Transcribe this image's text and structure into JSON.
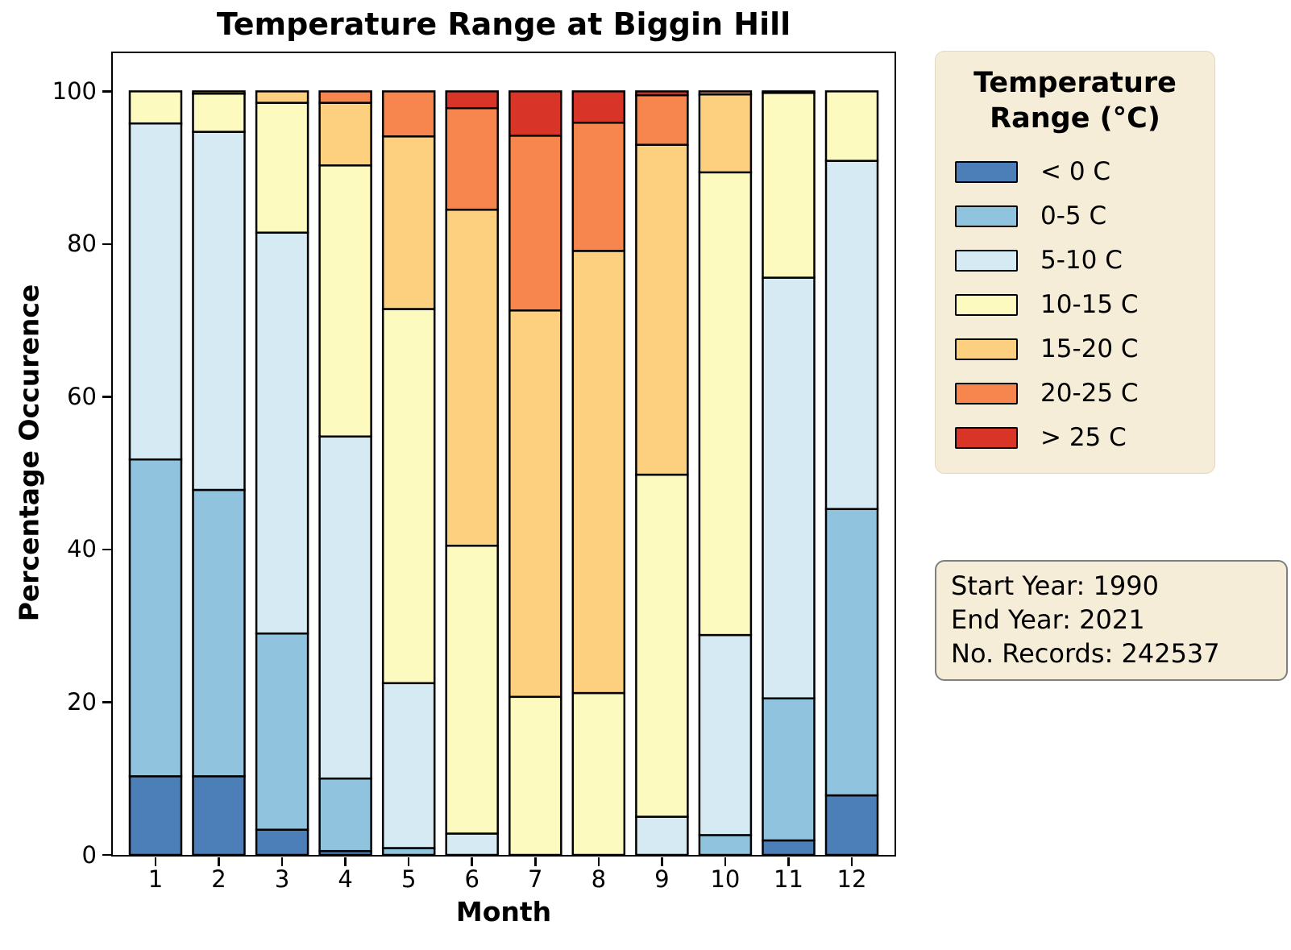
{
  "figure": {
    "title": "Temperature Range at Biggin Hill"
  },
  "axes": {
    "xlabel": "Month",
    "ylabel": "Percentage Occurence",
    "xtick_labels": [
      "1",
      "2",
      "3",
      "4",
      "5",
      "6",
      "7",
      "8",
      "9",
      "10",
      "11",
      "12"
    ],
    "ytick_labels": [
      "0",
      "20",
      "40",
      "60",
      "80",
      "100"
    ]
  },
  "legend": {
    "title": "Temperature Range (°C)",
    "background_color": "#f6edd8"
  },
  "info_box": {
    "lines": [
      "Start Year: 1990",
      "End Year: 2021",
      "No. Records: 242537"
    ],
    "background_color": "#f6edd8",
    "border_color": "#7f7f7f"
  },
  "chart_data": {
    "type": "bar",
    "stacked": true,
    "title": "Temperature Range at Biggin Hill",
    "xlabel": "Month",
    "ylabel": "Percentage Occurence",
    "categories": [
      1,
      2,
      3,
      4,
      5,
      6,
      7,
      8,
      9,
      10,
      11,
      12
    ],
    "yticks": [
      0,
      20,
      40,
      60,
      80,
      100
    ],
    "ylim": [
      0,
      105
    ],
    "grid": false,
    "legend_position": "right",
    "legend_title": "Temperature Range (°C)",
    "bar_edge_color": "#000000",
    "series": [
      {
        "name": "< 0 C",
        "color": "#4c7fb8",
        "values": [
          10.3,
          10.3,
          3.3,
          0.5,
          0,
          0,
          0,
          0,
          0,
          0,
          1.9,
          7.8
        ]
      },
      {
        "name": "0-5 C",
        "color": "#90c3de",
        "values": [
          41.5,
          37.5,
          25.7,
          9.5,
          0.9,
          0,
          0,
          0,
          0,
          2.6,
          18.6,
          37.5
        ]
      },
      {
        "name": "5-10 C",
        "color": "#d6eaf3",
        "values": [
          44.0,
          46.9,
          52.5,
          44.8,
          21.6,
          2.8,
          0,
          0,
          5.0,
          26.2,
          55.1,
          45.6
        ]
      },
      {
        "name": "10-15 C",
        "color": "#fdfabf",
        "values": [
          4.2,
          5.0,
          17.0,
          35.5,
          49.0,
          37.7,
          20.7,
          21.2,
          44.8,
          60.6,
          24.2,
          9.1
        ]
      },
      {
        "name": "15-20 C",
        "color": "#fcd07e",
        "values": [
          0,
          0.3,
          1.5,
          8.2,
          22.6,
          44.0,
          50.6,
          57.9,
          43.2,
          10.2,
          0.2,
          0
        ]
      },
      {
        "name": "20-25 C",
        "color": "#f7854e",
        "values": [
          0,
          0,
          0,
          1.5,
          5.9,
          13.3,
          22.9,
          16.8,
          6.5,
          0.4,
          0,
          0
        ]
      },
      {
        "name": "> 25 C",
        "color": "#d93428",
        "values": [
          0,
          0,
          0,
          0,
          0,
          2.2,
          5.8,
          4.1,
          0.5,
          0,
          0,
          0
        ]
      }
    ],
    "annotation": {
      "lines": [
        "Start Year: 1990",
        "End Year: 2021",
        "No. Records: 242537"
      ]
    }
  }
}
